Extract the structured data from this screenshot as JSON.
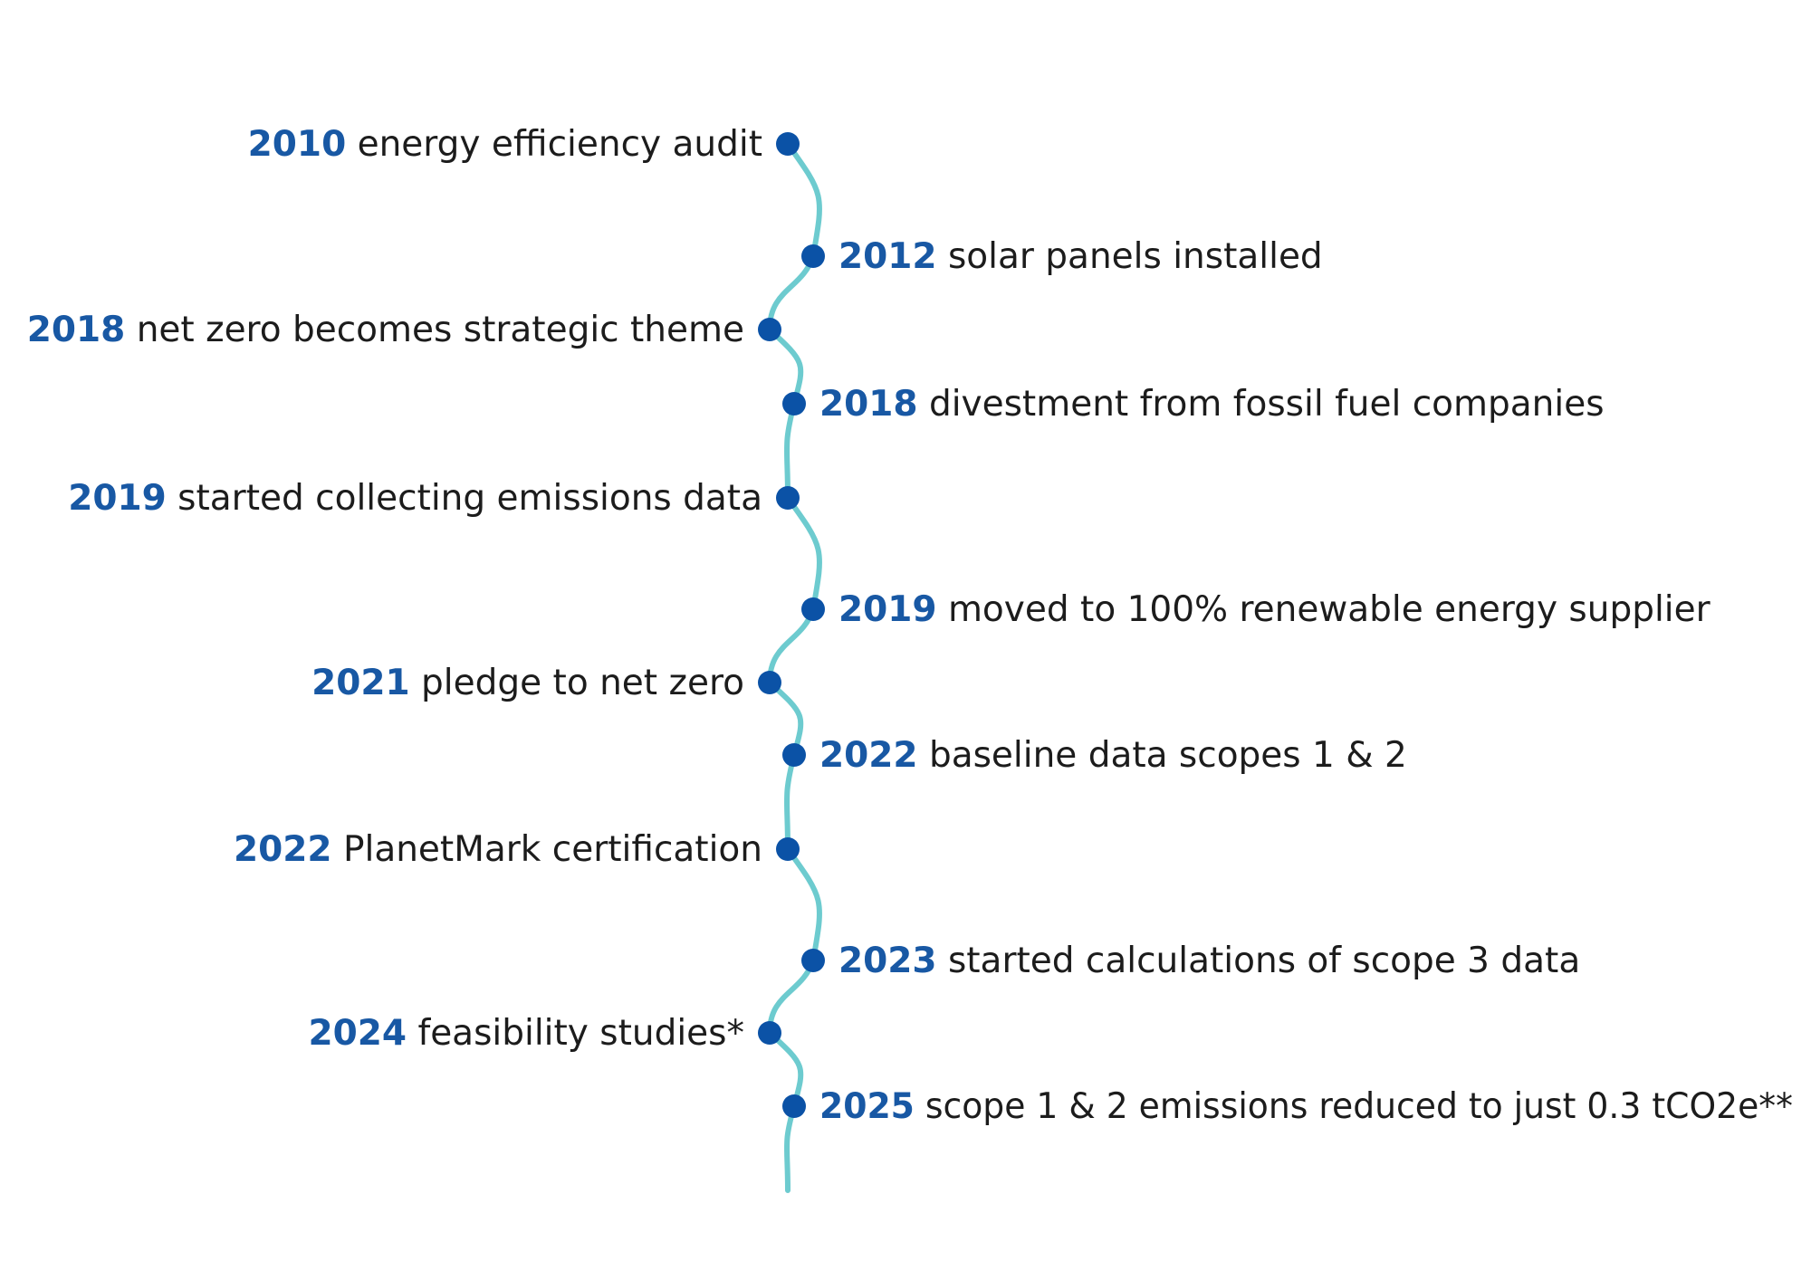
{
  "colors": {
    "year": "#1858a4",
    "text": "#1c1c1c",
    "line": "#6dcbcf",
    "dot": "#0b52a6"
  },
  "events": [
    {
      "year": "2010",
      "text": "energy efficiency audit",
      "side": "left"
    },
    {
      "year": "2012",
      "text": "solar panels installed",
      "side": "right"
    },
    {
      "year": "2018",
      "text": "net zero becomes strategic theme",
      "side": "left"
    },
    {
      "year": "2018",
      "text": "divestment from fossil fuel companies",
      "side": "right"
    },
    {
      "year": "2019",
      "text": "started collecting emissions data",
      "side": "left"
    },
    {
      "year": "2019",
      "text": "moved to 100% renewable energy supplier",
      "side": "right"
    },
    {
      "year": "2021",
      "text": "pledge to net zero",
      "side": "left"
    },
    {
      "year": "2022",
      "text": "baseline data scopes 1 & 2",
      "side": "right"
    },
    {
      "year": "2022",
      "text": "PlanetMark certification",
      "side": "left"
    },
    {
      "year": "2023",
      "text": "started calculations of scope 3 data",
      "side": "right"
    },
    {
      "year": "2024",
      "text": "feasibility studies*",
      "side": "left"
    },
    {
      "year": "2025",
      "text": "scope 1 & 2 emissions reduced to just 0.3 tCO2e**",
      "side": "right"
    }
  ]
}
